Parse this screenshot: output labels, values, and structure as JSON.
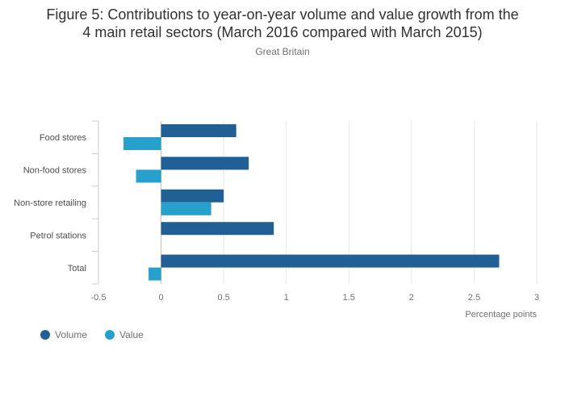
{
  "title_line1": "Figure 5: Contributions to year-on-year volume and value growth from the",
  "title_line2": "4 main retail sectors (March 2016 compared with March 2015)",
  "subtitle": "Great Britain",
  "chart_data": {
    "type": "bar",
    "orientation": "horizontal",
    "categories": [
      "Food stores",
      "Non-food stores",
      "Non-store retailing",
      "Petrol stations",
      "Total"
    ],
    "series": [
      {
        "name": "Volume",
        "color": "#206095",
        "values": [
          0.6,
          0.7,
          0.5,
          0.9,
          2.7
        ]
      },
      {
        "name": "Value",
        "color": "#27a0cc",
        "values": [
          -0.3,
          -0.2,
          0.4,
          0.0,
          -0.1
        ]
      }
    ],
    "xlabel": "Percentage points",
    "xlim": [
      -0.5,
      3
    ],
    "xticks": [
      -0.5,
      0,
      0.5,
      1,
      1.5,
      2,
      2.5,
      3
    ],
    "xtick_labels": [
      "-0.5",
      "0",
      "0.5",
      "1",
      "1.5",
      "2",
      "2.5",
      "3"
    ],
    "grid": true,
    "legend_position": "bottom-left"
  }
}
